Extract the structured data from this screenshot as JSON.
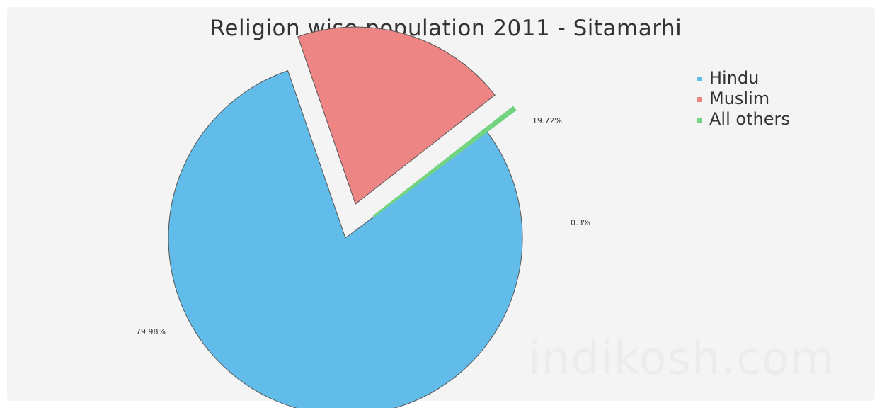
{
  "chart_data": {
    "type": "pie",
    "title": "Religion wise population 2011 - Sitamarhi",
    "slices": [
      {
        "name": "Hindu",
        "value": 79.98,
        "label": "79.98%",
        "color": "#62bce9"
      },
      {
        "name": "Muslim",
        "value": 19.72,
        "label": "19.72%",
        "color": "#ee8585"
      },
      {
        "name": "All others",
        "value": 0.3,
        "label": "0.3%",
        "color": "#72d380"
      }
    ],
    "legend_position": "top-right"
  },
  "watermark": "indikosh.com"
}
